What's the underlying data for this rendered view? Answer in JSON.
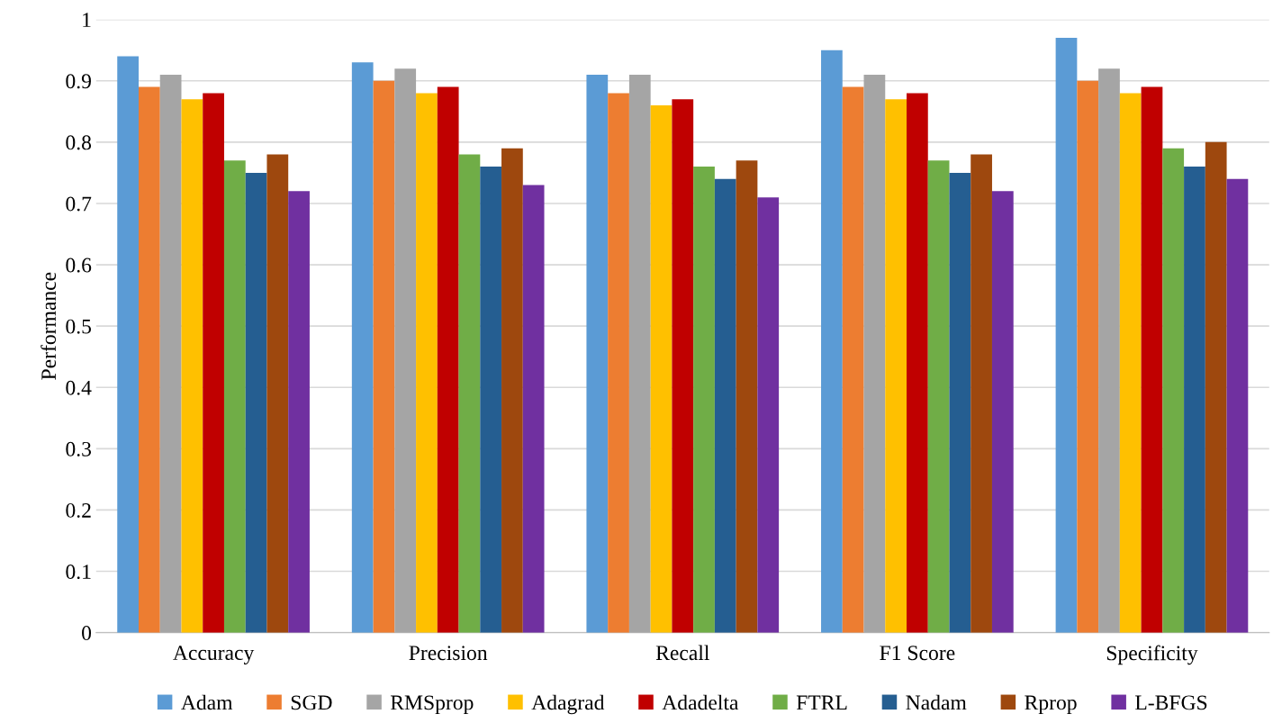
{
  "chart_data": {
    "type": "bar",
    "ylabel": "Performance",
    "categories": [
      "Accuracy",
      "Precision",
      "Recall",
      "F1 Score",
      "Specificity"
    ],
    "series": [
      {
        "name": "Adam",
        "color": "#5b9bd5",
        "values": [
          0.94,
          0.93,
          0.91,
          0.95,
          0.97
        ]
      },
      {
        "name": "SGD",
        "color": "#ed7d31",
        "values": [
          0.89,
          0.9,
          0.88,
          0.89,
          0.9
        ]
      },
      {
        "name": "RMSprop",
        "color": "#a5a5a5",
        "values": [
          0.91,
          0.92,
          0.91,
          0.91,
          0.92
        ]
      },
      {
        "name": "Adagrad",
        "color": "#ffc000",
        "values": [
          0.87,
          0.88,
          0.86,
          0.87,
          0.88
        ]
      },
      {
        "name": "Adadelta",
        "color": "#c00000",
        "values": [
          0.88,
          0.89,
          0.87,
          0.88,
          0.89
        ]
      },
      {
        "name": "FTRL",
        "color": "#70ad47",
        "values": [
          0.77,
          0.78,
          0.76,
          0.77,
          0.79
        ]
      },
      {
        "name": "Nadam",
        "color": "#255e91",
        "values": [
          0.75,
          0.76,
          0.74,
          0.75,
          0.76
        ]
      },
      {
        "name": "Rprop",
        "color": "#9e480e",
        "values": [
          0.78,
          0.79,
          0.77,
          0.78,
          0.8
        ]
      },
      {
        "name": "L-BFGS",
        "color": "#7030a0",
        "values": [
          0.72,
          0.73,
          0.71,
          0.72,
          0.74
        ]
      }
    ],
    "ylim": [
      0,
      1
    ],
    "yticks": [
      0,
      0.1,
      0.2,
      0.3,
      0.4,
      0.5,
      0.6,
      0.7,
      0.8,
      0.9,
      1
    ],
    "grid": "y",
    "legend": "bottom"
  }
}
